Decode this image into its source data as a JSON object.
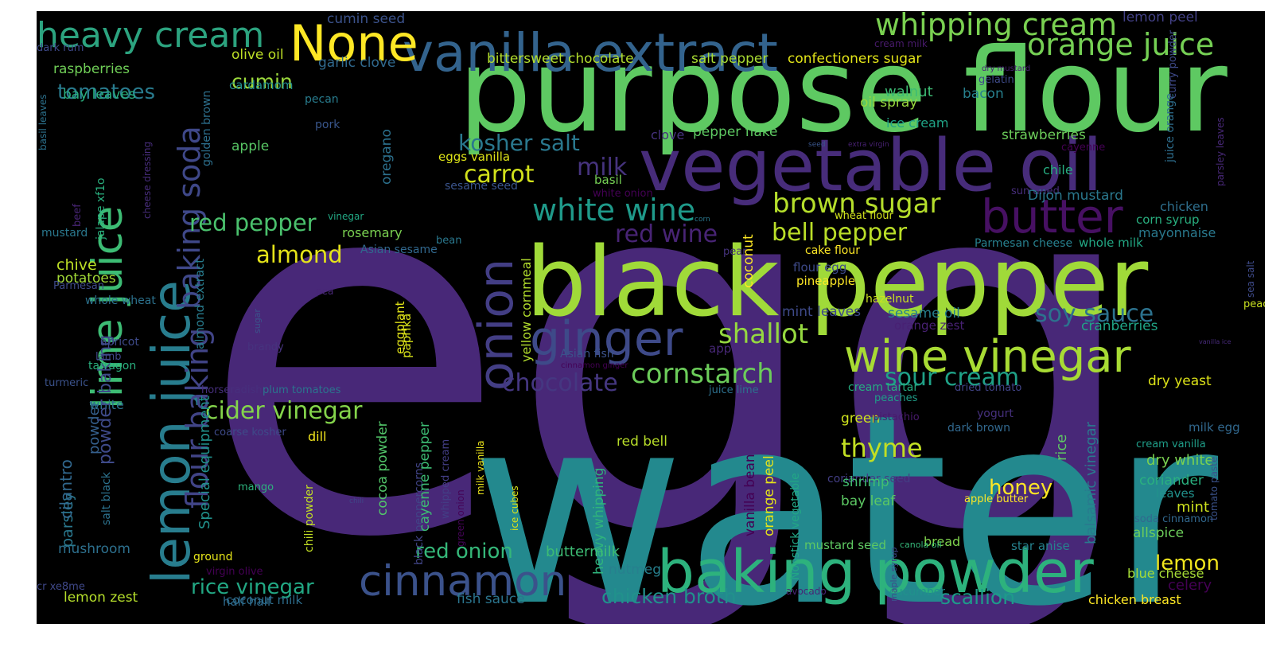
{
  "palette": {
    "background": "#000000",
    "outer_background": "#ffffff"
  },
  "words": [
    {
      "text": "egg",
      "color": "#482878"
    },
    {
      "text": "water",
      "color": "#23898e"
    },
    {
      "text": "purpose flour",
      "color": "#5ec962"
    },
    {
      "text": "black pepper",
      "color": "#a0da39"
    },
    {
      "text": "vegetable oil",
      "color": "#472c7a"
    },
    {
      "text": "vanilla extract",
      "color": "#33638d"
    },
    {
      "text": "None",
      "color": "#fde725"
    },
    {
      "text": "heavy cream",
      "color": "#2ca37f"
    },
    {
      "text": "lemon juice",
      "color": "#287d8e"
    },
    {
      "text": "lime juice",
      "color": "#3dbc74"
    },
    {
      "text": "baking powder",
      "color": "#2db27d"
    },
    {
      "text": "wine vinegar",
      "color": "#a8db34"
    },
    {
      "text": "cinnamon",
      "color": "#3b528b"
    },
    {
      "text": "ginger",
      "color": "#3e4a89"
    },
    {
      "text": "onion",
      "color": "#433e85"
    },
    {
      "text": "butter",
      "color": "#471063"
    },
    {
      "text": "whipping cream",
      "color": "#7ad151"
    },
    {
      "text": "orange juice",
      "color": "#75d054"
    },
    {
      "text": "white wine",
      "color": "#1f9a8a"
    },
    {
      "text": "brown sugar",
      "color": "#b5de2b"
    },
    {
      "text": "bell pepper",
      "color": "#bade28"
    },
    {
      "text": "red wine",
      "color": "#482475"
    },
    {
      "text": "flour baking",
      "color": "#414487"
    },
    {
      "text": "baking soda",
      "color": "#3f4889"
    },
    {
      "text": "cornstarch",
      "color": "#6ccd5a"
    },
    {
      "text": "cider vinegar",
      "color": "#84d44b"
    },
    {
      "text": "shallot",
      "color": "#95d840"
    },
    {
      "text": "soy sauce",
      "color": "#2c728e"
    },
    {
      "text": "sour cream",
      "color": "#1fa187"
    },
    {
      "text": "chocolate",
      "color": "#453781"
    },
    {
      "text": "kosher salt",
      "color": "#2a788e"
    },
    {
      "text": "carrot",
      "color": "#d2e21b"
    },
    {
      "text": "almond",
      "color": "#e5e419"
    },
    {
      "text": "red pepper",
      "color": "#4ac16d"
    },
    {
      "text": "milk",
      "color": "#46337e"
    },
    {
      "text": "thyme",
      "color": "#c2df23"
    },
    {
      "text": "honey",
      "color": "#fde725"
    },
    {
      "text": "lemon",
      "color": "#f1e51d"
    },
    {
      "text": "red onion",
      "color": "#35b779"
    },
    {
      "text": "rice vinegar",
      "color": "#22a884"
    },
    {
      "text": "chicken broth",
      "color": "#21918c"
    },
    {
      "text": "scallion",
      "color": "#1e9b8a"
    },
    {
      "text": "tomatoes",
      "color": "#297b8e"
    },
    {
      "text": "cumin",
      "color": "#9bd93c"
    },
    {
      "text": "olive oil",
      "color": "#bddf26"
    },
    {
      "text": "garlic clove",
      "color": "#30698e"
    },
    {
      "text": "bittersweet chocolate",
      "color": "#b2dd2d"
    },
    {
      "text": "salt pepper",
      "color": "#aadc32"
    },
    {
      "text": "confectioners sugar",
      "color": "#e2e418"
    },
    {
      "text": "lemon peel",
      "color": "#424086"
    },
    {
      "text": "cumin seed",
      "color": "#3b528b"
    },
    {
      "text": "raspberries",
      "color": "#70cf57"
    },
    {
      "text": "dark rum",
      "color": "#3e4989"
    },
    {
      "text": "bay leaves",
      "color": "#2ab07f"
    },
    {
      "text": "cardamom",
      "color": "#228c8d"
    },
    {
      "text": "pecan",
      "color": "#287c8e"
    },
    {
      "text": "golden brown",
      "color": "#2d708e"
    },
    {
      "text": "pork",
      "color": "#39568c"
    },
    {
      "text": "apple",
      "color": "#58c765"
    },
    {
      "text": "oregano",
      "color": "#2c718e"
    },
    {
      "text": "eggs vanilla",
      "color": "#dde318"
    },
    {
      "text": "sesame seed",
      "color": "#3a548c"
    },
    {
      "text": "basil",
      "color": "#75d054"
    },
    {
      "text": "white onion",
      "color": "#440154"
    },
    {
      "text": "walnut",
      "color": "#3dbc74"
    },
    {
      "text": "oil spray",
      "color": "#98d83e"
    },
    {
      "text": "bacon",
      "color": "#27808e"
    },
    {
      "text": "ice cream",
      "color": "#20a386"
    },
    {
      "text": "pepper flake",
      "color": "#5ec962"
    },
    {
      "text": "clove",
      "color": "#46327e"
    },
    {
      "text": "strawberries",
      "color": "#6ccd5a"
    },
    {
      "text": "cayenne",
      "color": "#440154"
    },
    {
      "text": "chile",
      "color": "#27ad81"
    },
    {
      "text": "sun dried",
      "color": "#472d7b"
    },
    {
      "text": "Dijon mustard",
      "color": "#2a788e"
    },
    {
      "text": "chicken",
      "color": "#2e6f8e"
    },
    {
      "text": "corn syrup",
      "color": "#29af7f"
    },
    {
      "text": "mayonnaise",
      "color": "#29798e"
    },
    {
      "text": "whole milk",
      "color": "#22a884"
    },
    {
      "text": "Parmesan cheese",
      "color": "#27808e"
    },
    {
      "text": "wheat flour",
      "color": "#d0e11c"
    },
    {
      "text": "coconut",
      "color": "#fde725"
    },
    {
      "text": "cake flour",
      "color": "#fde725"
    },
    {
      "text": "flour egg",
      "color": "#3e4a89"
    },
    {
      "text": "pineapple",
      "color": "#fde725"
    },
    {
      "text": "hazelnut",
      "color": "#cae11f"
    },
    {
      "text": "mint leaves",
      "color": "#3e4a89"
    },
    {
      "text": "sesame oil",
      "color": "#277f8e"
    },
    {
      "text": "orange zest",
      "color": "#482173"
    },
    {
      "text": "cranberries",
      "color": "#20a486"
    },
    {
      "text": "apple cider",
      "color": "#482878"
    },
    {
      "text": "cream tartar",
      "color": "#26ad81"
    },
    {
      "text": "dried tomato",
      "color": "#414487"
    },
    {
      "text": "dry yeast",
      "color": "#dde318"
    },
    {
      "text": "peaches",
      "color": "#1f9e89"
    },
    {
      "text": "green",
      "color": "#cde11d"
    },
    {
      "text": "pistachio",
      "color": "#481a6c"
    },
    {
      "text": "yogurt",
      "color": "#46307e"
    },
    {
      "text": "dark brown",
      "color": "#31688e"
    },
    {
      "text": "rice",
      "color": "#5ec962"
    },
    {
      "text": "coriander seed",
      "color": "#433e85"
    },
    {
      "text": "balsamic vinegar",
      "color": "#297a8e"
    },
    {
      "text": "milk egg",
      "color": "#31688e"
    },
    {
      "text": "cream vanilla",
      "color": "#1f9e89"
    },
    {
      "text": "dry white",
      "color": "#7ad151"
    },
    {
      "text": "coriander",
      "color": "#2ab07f"
    },
    {
      "text": "leaves",
      "color": "#21918c"
    },
    {
      "text": "mint",
      "color": "#cde11d"
    },
    {
      "text": "soda cinnamon",
      "color": "#31688e"
    },
    {
      "text": "allspice",
      "color": "#6ccd5a"
    },
    {
      "text": "blue cheese",
      "color": "#a5db36"
    },
    {
      "text": "celery",
      "color": "#440154"
    },
    {
      "text": "chicken breast",
      "color": "#fde725"
    },
    {
      "text": "star anise",
      "color": "#26828e"
    },
    {
      "text": "cucumber",
      "color": "#20928c"
    },
    {
      "text": "bread",
      "color": "#7fd34e"
    },
    {
      "text": "mustard seed",
      "color": "#5ec962"
    },
    {
      "text": "avocado",
      "color": "#482576"
    },
    {
      "text": "canola oil",
      "color": "#35b779"
    },
    {
      "text": "apple butter",
      "color": "#fde725"
    },
    {
      "text": "shrimp",
      "color": "#42be71"
    },
    {
      "text": "bay leaf",
      "color": "#5cc863"
    },
    {
      "text": "vanilla bean",
      "color": "#440154"
    },
    {
      "text": "orange peel",
      "color": "#e7e419"
    },
    {
      "text": "Nonstick vegetable",
      "color": "#22a785"
    },
    {
      "text": "red bell",
      "color": "#b8de29"
    },
    {
      "text": "heavy whipping",
      "color": "#2fb47c"
    },
    {
      "text": "whipped cream",
      "color": "#433e85"
    },
    {
      "text": "milk vanilla",
      "color": "#ece51b"
    },
    {
      "text": "ice cubes",
      "color": "#dae319"
    },
    {
      "text": "green onion",
      "color": "#450457"
    },
    {
      "text": "black peppercorns",
      "color": "#414487"
    },
    {
      "text": "cayenne pepper",
      "color": "#3dbc74"
    },
    {
      "text": "cocoa powder",
      "color": "#52c569"
    },
    {
      "text": "yellow cornmeal",
      "color": "#b2dd2d"
    },
    {
      "text": "Asian fish",
      "color": "#3b528b"
    },
    {
      "text": "cinnamon ginger",
      "color": "#440154"
    },
    {
      "text": "juice lime",
      "color": "#2d708e"
    },
    {
      "text": "buttermilk",
      "color": "#3dbc74"
    },
    {
      "text": "nutmeg",
      "color": "#27808e"
    },
    {
      "text": "fish sauce",
      "color": "#2b758e"
    },
    {
      "text": "half half",
      "color": "#2f6b8e"
    },
    {
      "text": "coconut milk",
      "color": "#2e6e8e"
    },
    {
      "text": "virgin olive",
      "color": "#440154"
    },
    {
      "text": "ground",
      "color": "#e5e419"
    },
    {
      "text": "cr xe8me",
      "color": "#3f4889"
    },
    {
      "text": "lemon zest",
      "color": "#b5de2b"
    },
    {
      "text": "mushroom",
      "color": "#2d708e"
    },
    {
      "text": "parsley",
      "color": "#2a788e"
    },
    {
      "text": "salt black",
      "color": "#2c728e"
    },
    {
      "text": "powder",
      "color": "#35608d"
    },
    {
      "text": "cilantro",
      "color": "#31688e"
    },
    {
      "text": "white",
      "color": "#2c728e"
    },
    {
      "text": "powder baking",
      "color": "#3e4a89"
    },
    {
      "text": "mango",
      "color": "#2db27d"
    },
    {
      "text": "chili",
      "color": "#3f4788"
    },
    {
      "text": "chili powder",
      "color": "#c2df23"
    },
    {
      "text": "dill",
      "color": "#f1e51d"
    },
    {
      "text": "coarse kosher",
      "color": "#3e4a89"
    },
    {
      "text": "plum tomatoes",
      "color": "#2b748e"
    },
    {
      "text": "horseradish",
      "color": "#472f7d"
    },
    {
      "text": "Special equipment",
      "color": "#21918c"
    },
    {
      "text": "almond extract",
      "color": "#287c8e"
    },
    {
      "text": "brandy",
      "color": "#46337e"
    },
    {
      "text": "sugar",
      "color": "#3a548c"
    },
    {
      "text": "eggplant",
      "color": "#e2e418"
    },
    {
      "text": "paprika",
      "color": "#d8e219"
    },
    {
      "text": "pea",
      "color": "#482777"
    },
    {
      "text": "Asian sesame",
      "color": "#31688e"
    },
    {
      "text": "bean",
      "color": "#2a788e"
    },
    {
      "text": "corn",
      "color": "#2a788e"
    },
    {
      "text": "pear",
      "color": "#46337e"
    },
    {
      "text": "rosemary",
      "color": "#7ad151"
    },
    {
      "text": "vinegar",
      "color": "#22a884"
    },
    {
      "text": "mustard",
      "color": "#2a788e"
    },
    {
      "text": "chive",
      "color": "#bddf26"
    },
    {
      "text": "potatoes",
      "color": "#a2da37"
    },
    {
      "text": "Parmesan",
      "color": "#3e4a89"
    },
    {
      "text": "whole wheat",
      "color": "#2c728e"
    },
    {
      "text": "apricot",
      "color": "#3e4a89"
    },
    {
      "text": "lamb",
      "color": "#404688"
    },
    {
      "text": "tarragon",
      "color": "#2ab07f"
    },
    {
      "text": "turmeric",
      "color": "#3b528b"
    },
    {
      "text": "jalape xf1o",
      "color": "#2ab07f"
    },
    {
      "text": "beef",
      "color": "#482576"
    },
    {
      "text": "cheese dressing",
      "color": "#472d7b"
    },
    {
      "text": "basil leaves",
      "color": "#2c728e"
    },
    {
      "text": "cream milk",
      "color": "#481a6c"
    },
    {
      "text": "dry mustard",
      "color": "#482374"
    },
    {
      "text": "gelatin",
      "color": "#3e4a89"
    },
    {
      "text": "curry powder",
      "color": "#3e4a89"
    },
    {
      "text": "juice orange",
      "color": "#2e6e8e"
    },
    {
      "text": "parsley leaves",
      "color": "#482878"
    },
    {
      "text": "sea salt",
      "color": "#3e4a89"
    },
    {
      "text": "peach",
      "color": "#c8e020"
    },
    {
      "text": "seed",
      "color": "#39568c"
    },
    {
      "text": "extra virgin",
      "color": "#482173"
    },
    {
      "text": "vanilla ice",
      "color": "#472a7a"
    },
    {
      "text": "tomato paste",
      "color": "#3b528b"
    },
    {
      "text": "maple syrup",
      "color": "#3e4a89"
    }
  ]
}
